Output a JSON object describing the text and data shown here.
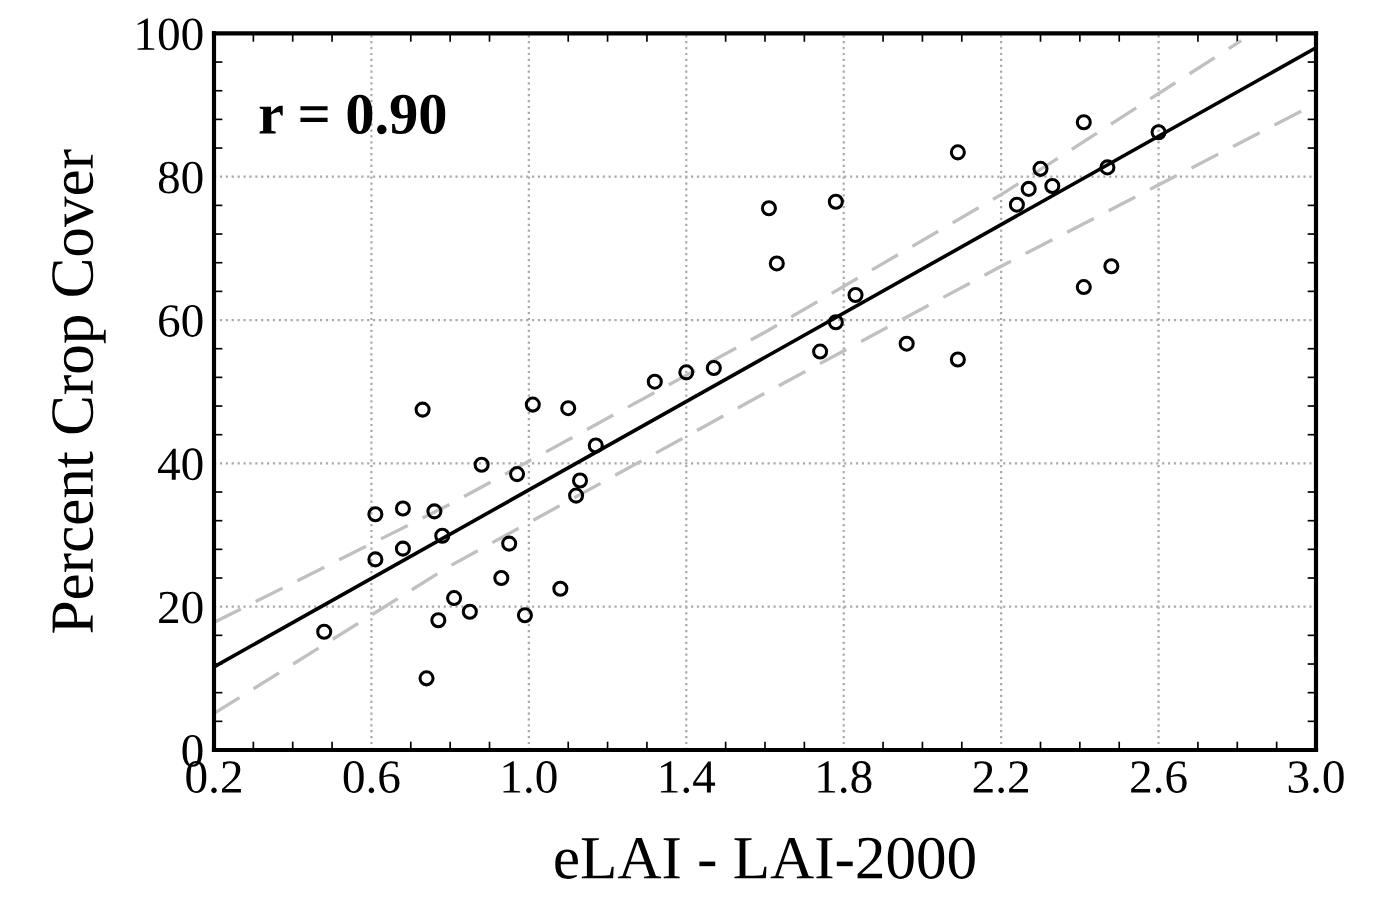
{
  "chart_data": {
    "type": "scatter",
    "xlabel": "eLAI - LAI-2000",
    "ylabel": "Percent Crop Cover",
    "annotations": [
      "r = 0.90"
    ],
    "xlim": [
      0.2,
      3.0
    ],
    "xticks": [
      {
        "value": 0.2,
        "label": "0.2"
      },
      {
        "value": 0.6,
        "label": "0.6"
      },
      {
        "value": 1.0,
        "label": "1.0"
      },
      {
        "value": 1.4,
        "label": "1.4"
      },
      {
        "value": 1.8,
        "label": "1.8"
      },
      {
        "value": 2.2,
        "label": "2.2"
      },
      {
        "value": 2.6,
        "label": "2.6"
      },
      {
        "value": 3.0,
        "label": "3.0"
      }
    ],
    "ylim": [
      0,
      100
    ],
    "yticks": [
      0,
      20,
      40,
      60,
      80,
      100
    ],
    "grid": true,
    "series": [
      {
        "color": "#000000",
        "marker": "circle",
        "x": [
          0.48,
          0.61,
          0.61,
          0.68,
          0.68,
          0.73,
          0.74,
          0.76,
          0.78,
          0.77,
          0.81,
          0.85,
          0.88,
          0.93,
          0.95,
          0.97,
          0.99,
          1.01,
          1.08,
          1.1,
          1.12,
          1.13,
          1.17,
          1.32,
          1.4,
          1.47,
          1.61,
          1.63,
          1.78,
          1.78,
          1.83,
          1.74,
          1.96,
          2.09,
          2.09,
          2.24,
          2.27,
          2.3,
          2.33,
          2.41,
          2.41,
          2.47,
          2.48,
          2.6
        ],
        "values": [
          16.5,
          32.9,
          26.6,
          33.7,
          28.1,
          47.5,
          10.0,
          33.3,
          29.9,
          18.1,
          21.2,
          19.3,
          39.8,
          24.0,
          28.8,
          38.5,
          18.8,
          48.2,
          22.5,
          47.7,
          35.5,
          37.6,
          42.5,
          51.4,
          52.7,
          53.3,
          75.6,
          67.9,
          76.5,
          59.7,
          63.5,
          55.6,
          56.7,
          83.4,
          54.5,
          76.1,
          78.3,
          81.1,
          78.7,
          87.6,
          64.6,
          81.3,
          67.5,
          86.2
        ]
      },
      {
        "type": "line",
        "color": "#000000",
        "line_style": "solid",
        "x": [
          0.2,
          3.0
        ],
        "values": [
          11.6,
          98.0
        ]
      },
      {
        "type": "line",
        "color": "#c0c0c0",
        "line_style": "dashed",
        "x": [
          0.2,
          0.8,
          1.6,
          2.2,
          2.81
        ],
        "values": [
          17.8,
          34.3,
          58.3,
          77.5,
          99.0
        ]
      },
      {
        "type": "line",
        "color": "#c0c0c0",
        "line_style": "dashed",
        "x": [
          0.2,
          0.8,
          1.6,
          2.2,
          3.0
        ],
        "values": [
          5.1,
          25.7,
          49.8,
          67.5,
          90.2
        ]
      }
    ]
  }
}
